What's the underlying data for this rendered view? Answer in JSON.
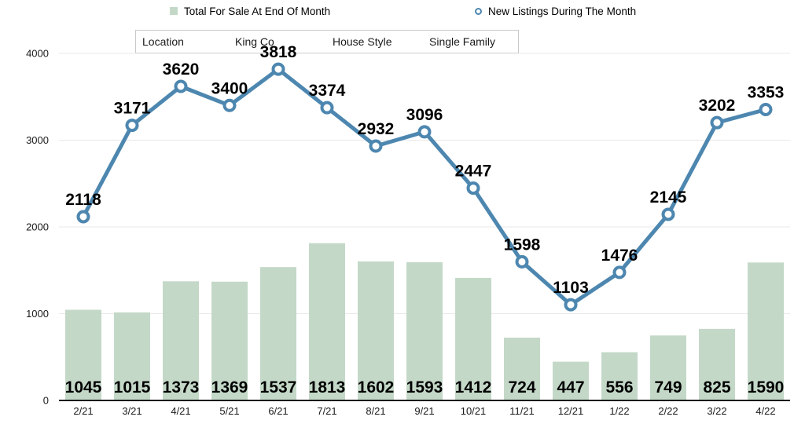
{
  "filters": {
    "location_label": "Location",
    "location_value": "King Co",
    "house_style_label": "House Style",
    "house_style_value": "Single Family"
  },
  "chart_data": {
    "type": "bar+line",
    "categories": [
      "2/21",
      "3/21",
      "4/21",
      "5/21",
      "6/21",
      "7/21",
      "8/21",
      "9/21",
      "10/21",
      "11/21",
      "12/21",
      "1/22",
      "2/22",
      "3/22",
      "4/22"
    ],
    "series": [
      {
        "name": "Total For Sale At End Of Month",
        "type": "bar",
        "color": "#c4d8c8",
        "values": [
          1045,
          1015,
          1373,
          1369,
          1537,
          1813,
          1602,
          1593,
          1412,
          724,
          447,
          556,
          749,
          825,
          1590
        ]
      },
      {
        "name": "New Listings During The Month",
        "type": "line",
        "color": "#4d87b0",
        "marker": "circle-outline",
        "values": [
          2118,
          3171,
          3620,
          3400,
          3818,
          3374,
          2932,
          3096,
          2447,
          1598,
          1103,
          1476,
          2145,
          3202,
          3353
        ]
      }
    ],
    "title": "",
    "xlabel": "",
    "ylabel": "",
    "ylim": [
      0,
      4000
    ],
    "yticks": [
      0,
      1000,
      2000,
      3000,
      4000
    ],
    "grid": true,
    "grid_color": "#e8e8e8",
    "axis_color": "#1a1a1a",
    "legend_position": "top",
    "data_labels": true
  }
}
